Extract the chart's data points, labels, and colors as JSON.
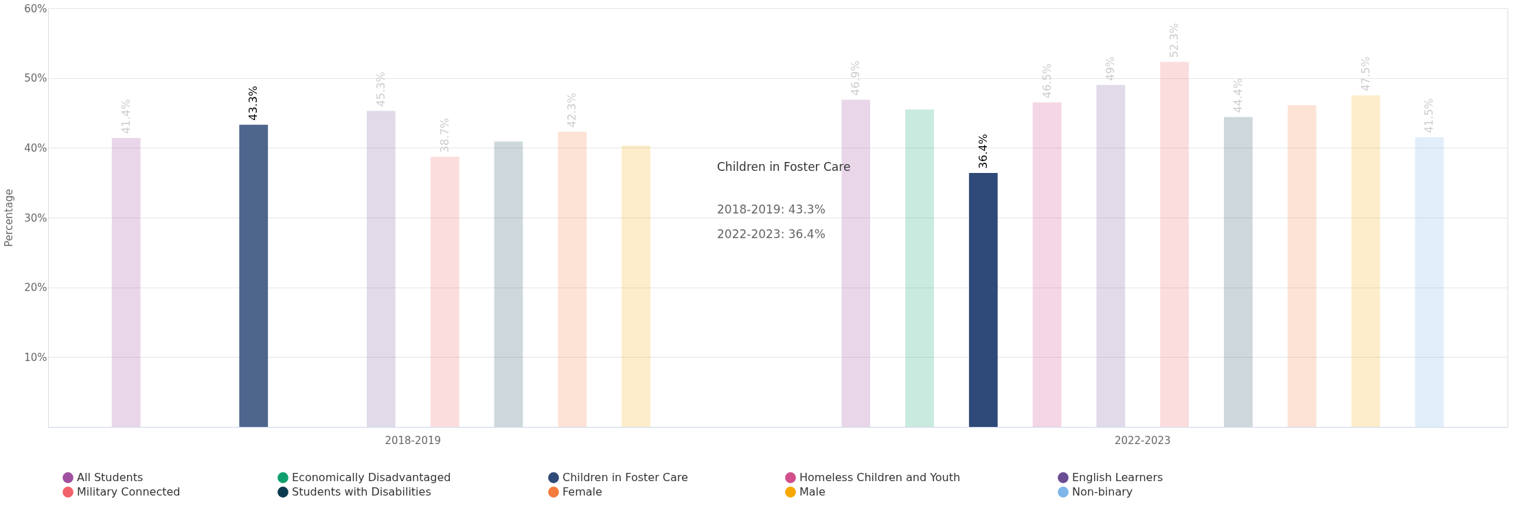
{
  "chart_data": {
    "type": "bar",
    "ylabel": "Percentage",
    "categories": [
      "2018-2019",
      "2022-2023"
    ],
    "series": [
      {
        "name": "All Students",
        "color": "#a0509f",
        "colors": [
          "#e9d9e8",
          "#e9d9e8"
        ],
        "values": [
          41.4,
          46.9
        ],
        "value_labels": [
          "41.4%",
          "46.9%"
        ]
      },
      {
        "name": "Economically Disadvantaged",
        "color": "#0e9f6e",
        "colors": [
          "#cce9de",
          "#cce9de"
        ],
        "values": [
          null,
          45.5
        ],
        "value_labels": [
          null,
          null
        ]
      },
      {
        "name": "Children in Foster Care",
        "color": "#2f4a78",
        "colors": [
          "#4a6490",
          "#2f4a78"
        ],
        "values": [
          43.3,
          36.4
        ],
        "value_labels": [
          "43.3%",
          "36.4%"
        ]
      },
      {
        "name": "Homeless Children and Youth",
        "color": "#d14f8a",
        "colors": [
          "#f3d9e5",
          "#f3d9e5"
        ],
        "values": [
          null,
          46.5
        ],
        "value_labels": [
          null,
          "46.5%"
        ]
      },
      {
        "name": "English Learners",
        "color": "#6a4c93",
        "colors": [
          "#dfdbe8",
          "#dfdbe8"
        ],
        "values": [
          45.3,
          49
        ],
        "value_labels": [
          "45.3%",
          "49%"
        ]
      },
      {
        "name": "Military Connected",
        "color": "#f2626b",
        "colors": [
          "#fbdcdf",
          "#fbdcdf"
        ],
        "values": [
          38.7,
          52.3
        ],
        "value_labels": [
          "38.7%",
          "52.3%"
        ]
      },
      {
        "name": "Students with Disabilities",
        "color": "#0c3b4f",
        "colors": [
          "#cad8de",
          "#cad8de"
        ],
        "values": [
          40.9,
          44.4
        ],
        "value_labels": [
          null,
          "44.4%"
        ]
      },
      {
        "name": "Female",
        "color": "#f47b3e",
        "colors": [
          "#fde2d6",
          "#fde2d6"
        ],
        "values": [
          42.3,
          46.1
        ],
        "value_labels": [
          "42.3%",
          null
        ]
      },
      {
        "name": "Male",
        "color": "#f7a800",
        "colors": [
          "#feedc9",
          "#feedc9"
        ],
        "values": [
          40.3,
          47.5
        ],
        "value_labels": [
          null,
          "47.5%"
        ]
      },
      {
        "name": "Non-binary",
        "color": "#7eb6ea",
        "colors": [
          null,
          "#e3eefa"
        ],
        "values": [
          null,
          41.5
        ],
        "value_labels": [
          null,
          "41.5%"
        ]
      }
    ],
    "ylim": [
      0,
      60
    ],
    "yticks": [
      {
        "value": 10,
        "label": "10%"
      },
      {
        "value": 20,
        "label": "20%"
      },
      {
        "value": 30,
        "label": "30%"
      },
      {
        "value": 40,
        "label": "40%"
      },
      {
        "value": 50,
        "label": "50%"
      },
      {
        "value": 60,
        "label": "60%"
      }
    ],
    "grid": "y",
    "legend": "bottom",
    "annotations": [
      "Children in Foster Care",
      "2018-2019: 43.3%",
      "2022-2023: 36.4%"
    ]
  }
}
